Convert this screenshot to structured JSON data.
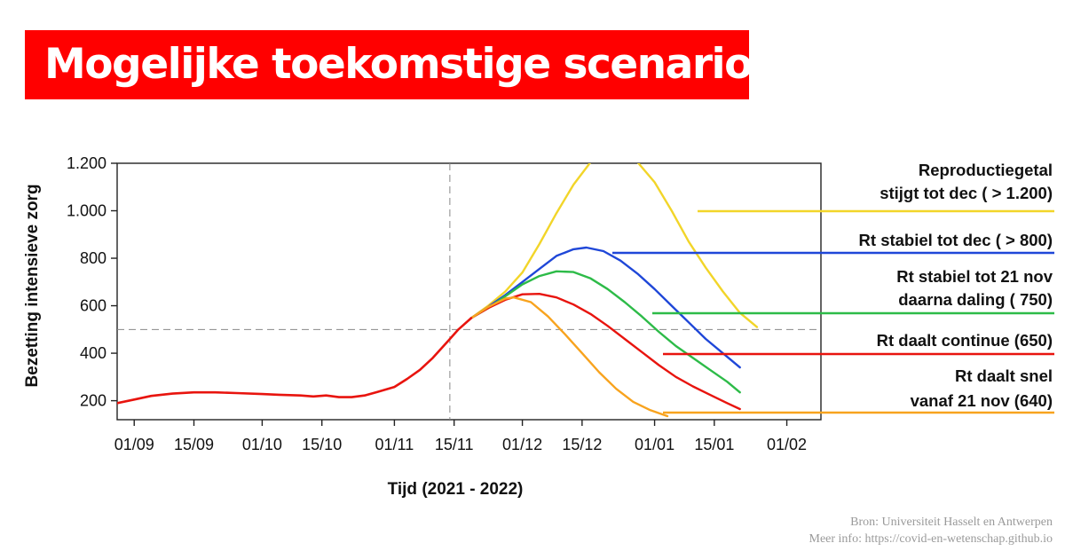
{
  "title": "Mogelijke toekomstige scenario’s",
  "source": {
    "line1": "Bron: Universiteit Hasselt en Antwerpen",
    "line2": "Meer info: https://covid-en-wetenschap.github.io"
  },
  "chart_data": {
    "type": "line",
    "xlabel": "Tijd  (2021 - 2022)",
    "ylabel": "Bezetting  intensieve zorg",
    "x_range": [
      "2021-08-28",
      "2022-02-09"
    ],
    "ylim": [
      120,
      1200
    ],
    "y_ticks": [
      200,
      400,
      600,
      800,
      1000,
      1200
    ],
    "y_tick_labels": [
      "200",
      "400",
      "600",
      "800",
      "1.000",
      "1.200"
    ],
    "x_ticks": [
      "2021-09-01",
      "2021-09-15",
      "2021-10-01",
      "2021-10-15",
      "2021-11-01",
      "2021-11-15",
      "2021-12-01",
      "2021-12-15",
      "2022-01-01",
      "2022-01-15",
      "2022-02-01"
    ],
    "x_tick_labels": [
      "01/09",
      "15/09",
      "01/10",
      "15/10",
      "01/11",
      "15/11",
      "01/12",
      "15/12",
      "01/01",
      "15/01",
      "01/02"
    ],
    "reference_lines": {
      "x": "2021-11-14",
      "y": 500
    },
    "grid": false,
    "legend_position": "right",
    "history": {
      "color": "#e8140e",
      "points": [
        [
          "2021-08-28",
          190
        ],
        [
          "2021-09-01",
          205
        ],
        [
          "2021-09-05",
          220
        ],
        [
          "2021-09-10",
          230
        ],
        [
          "2021-09-15",
          235
        ],
        [
          "2021-09-20",
          235
        ],
        [
          "2021-09-25",
          232
        ],
        [
          "2021-10-01",
          228
        ],
        [
          "2021-10-05",
          225
        ],
        [
          "2021-10-10",
          222
        ],
        [
          "2021-10-13",
          218
        ],
        [
          "2021-10-16",
          222
        ],
        [
          "2021-10-19",
          215
        ],
        [
          "2021-10-22",
          215
        ],
        [
          "2021-10-25",
          222
        ],
        [
          "2021-10-28",
          237
        ],
        [
          "2021-11-01",
          258
        ],
        [
          "2021-11-04",
          292
        ],
        [
          "2021-11-07",
          330
        ],
        [
          "2021-11-10",
          380
        ],
        [
          "2021-11-13",
          440
        ],
        [
          "2021-11-16",
          500
        ],
        [
          "2021-11-19",
          548
        ]
      ]
    },
    "series": [
      {
        "label": [
          "Reproductiegetal",
          "stijgt tot dec ( > 1.200)"
        ],
        "color": "#f2d529",
        "points": [
          [
            "2021-11-19",
            548
          ],
          [
            "2021-11-23",
            600
          ],
          [
            "2021-11-27",
            660
          ],
          [
            "2021-12-01",
            740
          ],
          [
            "2021-12-05",
            860
          ],
          [
            "2021-12-09",
            990
          ],
          [
            "2021-12-13",
            1110
          ],
          [
            "2021-12-17",
            1205
          ],
          [
            "2021-12-28",
            1205
          ],
          [
            "2022-01-01",
            1120
          ],
          [
            "2022-01-05",
            1000
          ],
          [
            "2022-01-09",
            870
          ],
          [
            "2022-01-13",
            760
          ],
          [
            "2022-01-17",
            660
          ],
          [
            "2022-01-21",
            570
          ],
          [
            "2022-01-25",
            510
          ]
        ]
      },
      {
        "label": [
          "Rt stabiel tot dec ( > 800)"
        ],
        "color": "#1f47d8",
        "points": [
          [
            "2021-11-19",
            548
          ],
          [
            "2021-11-23",
            595
          ],
          [
            "2021-11-27",
            645
          ],
          [
            "2021-12-01",
            700
          ],
          [
            "2021-12-05",
            755
          ],
          [
            "2021-12-09",
            810
          ],
          [
            "2021-12-13",
            838
          ],
          [
            "2021-12-16",
            845
          ],
          [
            "2021-12-20",
            830
          ],
          [
            "2021-12-24",
            790
          ],
          [
            "2021-12-28",
            735
          ],
          [
            "2022-01-01",
            670
          ],
          [
            "2022-01-05",
            600
          ],
          [
            "2022-01-09",
            530
          ],
          [
            "2022-01-13",
            460
          ],
          [
            "2022-01-17",
            400
          ],
          [
            "2022-01-21",
            340
          ]
        ]
      },
      {
        "label": [
          "Rt stabiel tot 21 nov",
          "daarna daling  ( 750)"
        ],
        "color": "#2dbb48",
        "points": [
          [
            "2021-11-19",
            548
          ],
          [
            "2021-11-23",
            590
          ],
          [
            "2021-11-27",
            640
          ],
          [
            "2021-12-01",
            690
          ],
          [
            "2021-12-05",
            725
          ],
          [
            "2021-12-09",
            745
          ],
          [
            "2021-12-13",
            742
          ],
          [
            "2021-12-17",
            715
          ],
          [
            "2021-12-21",
            670
          ],
          [
            "2021-12-25",
            615
          ],
          [
            "2021-12-29",
            555
          ],
          [
            "2022-01-02",
            490
          ],
          [
            "2022-01-06",
            430
          ],
          [
            "2022-01-10",
            380
          ],
          [
            "2022-01-14",
            330
          ],
          [
            "2022-01-18",
            280
          ],
          [
            "2022-01-21",
            235
          ]
        ]
      },
      {
        "label": [
          "Rt daalt continue (650)"
        ],
        "color": "#e8140e",
        "points": [
          [
            "2021-11-19",
            548
          ],
          [
            "2021-11-23",
            590
          ],
          [
            "2021-11-27",
            625
          ],
          [
            "2021-12-01",
            648
          ],
          [
            "2021-12-05",
            650
          ],
          [
            "2021-12-09",
            635
          ],
          [
            "2021-12-13",
            605
          ],
          [
            "2021-12-17",
            565
          ],
          [
            "2021-12-21",
            515
          ],
          [
            "2021-12-25",
            460
          ],
          [
            "2021-12-29",
            405
          ],
          [
            "2022-01-02",
            350
          ],
          [
            "2022-01-06",
            300
          ],
          [
            "2022-01-10",
            260
          ],
          [
            "2022-01-14",
            225
          ],
          [
            "2022-01-18",
            190
          ],
          [
            "2022-01-21",
            165
          ]
        ]
      },
      {
        "label": [
          "Rt daalt snel",
          "vanaf 21 nov (640)"
        ],
        "color": "#f8a31e",
        "points": [
          [
            "2021-11-19",
            548
          ],
          [
            "2021-11-23",
            595
          ],
          [
            "2021-11-27",
            630
          ],
          [
            "2021-11-29",
            635
          ],
          [
            "2021-12-03",
            615
          ],
          [
            "2021-12-07",
            555
          ],
          [
            "2021-12-11",
            480
          ],
          [
            "2021-12-15",
            400
          ],
          [
            "2021-12-19",
            320
          ],
          [
            "2021-12-23",
            250
          ],
          [
            "2021-12-27",
            195
          ],
          [
            "2021-12-31",
            160
          ],
          [
            "2022-01-04",
            135
          ]
        ]
      }
    ]
  }
}
